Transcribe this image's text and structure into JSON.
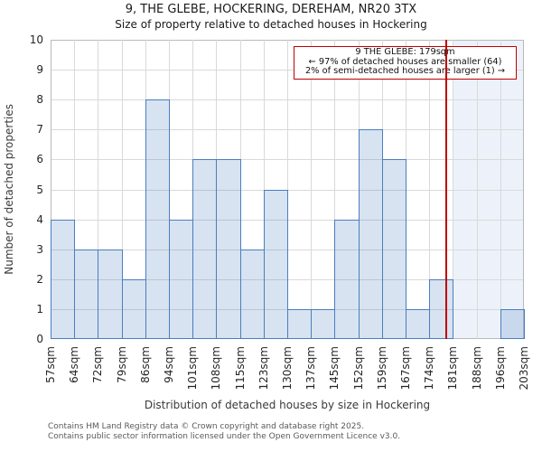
{
  "page": {
    "footer_line1": "Contains HM Land Registry data © Crown copyright and database right 2025.",
    "footer_line2": "Contains public sector information licensed under the Open Government Licence v3.0."
  },
  "chart_data": {
    "type": "bar",
    "title": "9, THE GLEBE, HOCKERING, DEREHAM, NR20 3TX",
    "subtitle": "Size of property relative to detached houses in Hockering",
    "xlabel": "Distribution of detached houses by size in Hockering",
    "ylabel": "Number of detached properties",
    "unit": "sqm",
    "bin_edges": [
      57,
      64,
      72,
      79,
      86,
      94,
      101,
      108,
      115,
      123,
      130,
      137,
      145,
      152,
      159,
      167,
      174,
      181,
      188,
      196,
      203
    ],
    "values": [
      4,
      3,
      3,
      2,
      8,
      4,
      6,
      6,
      3,
      5,
      1,
      1,
      4,
      7,
      6,
      1,
      2,
      0,
      0,
      1
    ],
    "ylim": [
      0,
      10
    ],
    "yticks": [
      0,
      1,
      2,
      3,
      4,
      5,
      6,
      7,
      8,
      9,
      10
    ],
    "grid": true,
    "legend": "none",
    "marker": {
      "value": 179,
      "label": "9 THE GLEBE: 179sqm"
    },
    "shade_from": 181,
    "annotation": {
      "line1": "9 THE GLEBE: 179sqm",
      "line2": "← 97% of detached houses are smaller (64)",
      "line3": "2% of semi-detached houses are larger (1) →"
    },
    "colors": {
      "bar_fill": "rgba(74,126,191,0.22)",
      "bar_edge": "#4a7ebf",
      "marker_line": "#c00000",
      "annotation_border": "#c00000",
      "shade_fill": "#edf2fa",
      "gridline": "#d9d9d9",
      "spine": "#b9b9b9"
    }
  }
}
